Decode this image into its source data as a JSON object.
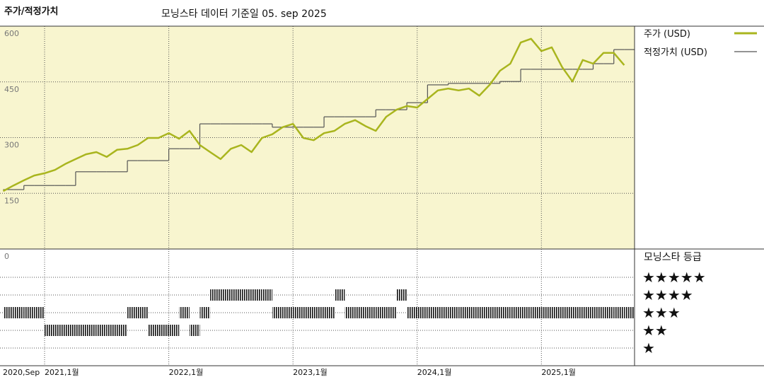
{
  "chart_data": [
    {
      "type": "line",
      "title": "주가/적정가치",
      "subtitle": "모닝스타 데이터 기준일 05. sep 2025",
      "background": "#f8f5cf",
      "grid": true,
      "x": [
        "2020-09",
        "2020-10",
        "2020-11",
        "2020-12",
        "2021-01",
        "2021-02",
        "2021-03",
        "2021-04",
        "2021-05",
        "2021-06",
        "2021-07",
        "2021-08",
        "2021-09",
        "2021-10",
        "2021-11",
        "2021-12",
        "2022-01",
        "2022-02",
        "2022-03",
        "2022-04",
        "2022-05",
        "2022-06",
        "2022-07",
        "2022-08",
        "2022-09",
        "2022-10",
        "2022-11",
        "2022-12",
        "2023-01",
        "2023-02",
        "2023-03",
        "2023-04",
        "2023-05",
        "2023-06",
        "2023-07",
        "2023-08",
        "2023-09",
        "2023-10",
        "2023-11",
        "2023-12",
        "2024-01",
        "2024-02",
        "2024-03",
        "2024-04",
        "2024-05",
        "2024-06",
        "2024-07",
        "2024-08",
        "2024-09",
        "2024-10",
        "2024-11",
        "2024-12",
        "2025-01",
        "2025-02",
        "2025-03",
        "2025-04",
        "2025-05",
        "2025-06",
        "2025-07",
        "2025-08",
        "2025-09"
      ],
      "xlim": [
        "2020-09",
        "2025-10"
      ],
      "ylim": [
        0,
        600
      ],
      "yticks": [
        0,
        150,
        300,
        450,
        600
      ],
      "series": [
        {
          "name": "주가 (USD)",
          "color": "#a9b51e",
          "values": [
            156,
            171,
            185,
            198,
            204,
            213,
            229,
            242,
            255,
            261,
            248,
            267,
            270,
            280,
            299,
            299,
            312,
            297,
            318,
            280,
            261,
            242,
            270,
            280,
            261,
            299,
            309,
            328,
            337,
            299,
            293,
            312,
            318,
            337,
            347,
            331,
            318,
            356,
            375,
            385,
            381,
            404,
            427,
            432,
            427,
            432,
            413,
            442,
            480,
            499,
            556,
            566,
            533,
            543,
            490,
            451,
            509,
            499,
            528,
            528,
            495
          ]
        },
        {
          "name": "적정가치 (USD)",
          "color": "#555555",
          "values": [
            160,
            160,
            171,
            171,
            171,
            171,
            171,
            208,
            208,
            208,
            208,
            208,
            238,
            238,
            238,
            238,
            270,
            270,
            270,
            337,
            337,
            337,
            337,
            337,
            337,
            337,
            328,
            328,
            328,
            328,
            328,
            356,
            356,
            356,
            356,
            356,
            375,
            375,
            375,
            394,
            394,
            442,
            442,
            446,
            446,
            446,
            446,
            446,
            451,
            451,
            484,
            484,
            484,
            484,
            484,
            484,
            484,
            499,
            499,
            537,
            537
          ]
        }
      ]
    },
    {
      "type": "rating",
      "title": "모닝스타 등급",
      "color": "#111111",
      "x": [
        "2020-09",
        "2020-10",
        "2020-11",
        "2020-12",
        "2021-01",
        "2021-02",
        "2021-03",
        "2021-04",
        "2021-05",
        "2021-06",
        "2021-07",
        "2021-08",
        "2021-09",
        "2021-10",
        "2021-11",
        "2021-12",
        "2022-01",
        "2022-02",
        "2022-03",
        "2022-04",
        "2022-05",
        "2022-06",
        "2022-07",
        "2022-08",
        "2022-09",
        "2022-10",
        "2022-11",
        "2022-12",
        "2023-01",
        "2023-02",
        "2023-03",
        "2023-04",
        "2023-05",
        "2023-06",
        "2023-07",
        "2023-08",
        "2023-09",
        "2023-10",
        "2023-11",
        "2023-12",
        "2024-01",
        "2024-02",
        "2024-03",
        "2024-04",
        "2024-05",
        "2024-06",
        "2024-07",
        "2024-08",
        "2024-09",
        "2024-10",
        "2024-11",
        "2024-12",
        "2025-01",
        "2025-02",
        "2025-03",
        "2025-04",
        "2025-05",
        "2025-06",
        "2025-07",
        "2025-08",
        "2025-09"
      ],
      "values": [
        3,
        3,
        3,
        3,
        2,
        2,
        2,
        2,
        2,
        2,
        2,
        2,
        3,
        3,
        2,
        2,
        2,
        3,
        2,
        3,
        4,
        4,
        4,
        4,
        4,
        4,
        3,
        3,
        3,
        3,
        3,
        3,
        4,
        3,
        3,
        3,
        3,
        3,
        4,
        3,
        3,
        3,
        3,
        3,
        3,
        3,
        3,
        3,
        3,
        3,
        3,
        3,
        3,
        3,
        3,
        3,
        3,
        3,
        3,
        3,
        3
      ],
      "xlim": [
        "2020-09",
        "2025-10"
      ],
      "ylim": [
        0,
        6.6
      ],
      "yticks": [
        {
          "value": 5,
          "label": "★★★★★"
        },
        {
          "value": 4,
          "label": "★★★★"
        },
        {
          "value": 3,
          "label": "★★★"
        },
        {
          "value": 2,
          "label": "★★"
        },
        {
          "value": 1,
          "label": "★"
        }
      ],
      "xticks": [
        {
          "value": "2020-09",
          "label": "2020,Sep"
        },
        {
          "value": "2021-01",
          "label": "2021,1월"
        },
        {
          "value": "2022-01",
          "label": "2022,1월"
        },
        {
          "value": "2023-01",
          "label": "2023,1월"
        },
        {
          "value": "2024-01",
          "label": "2024,1월"
        },
        {
          "value": "2025-01",
          "label": "2025,1월"
        }
      ]
    }
  ]
}
